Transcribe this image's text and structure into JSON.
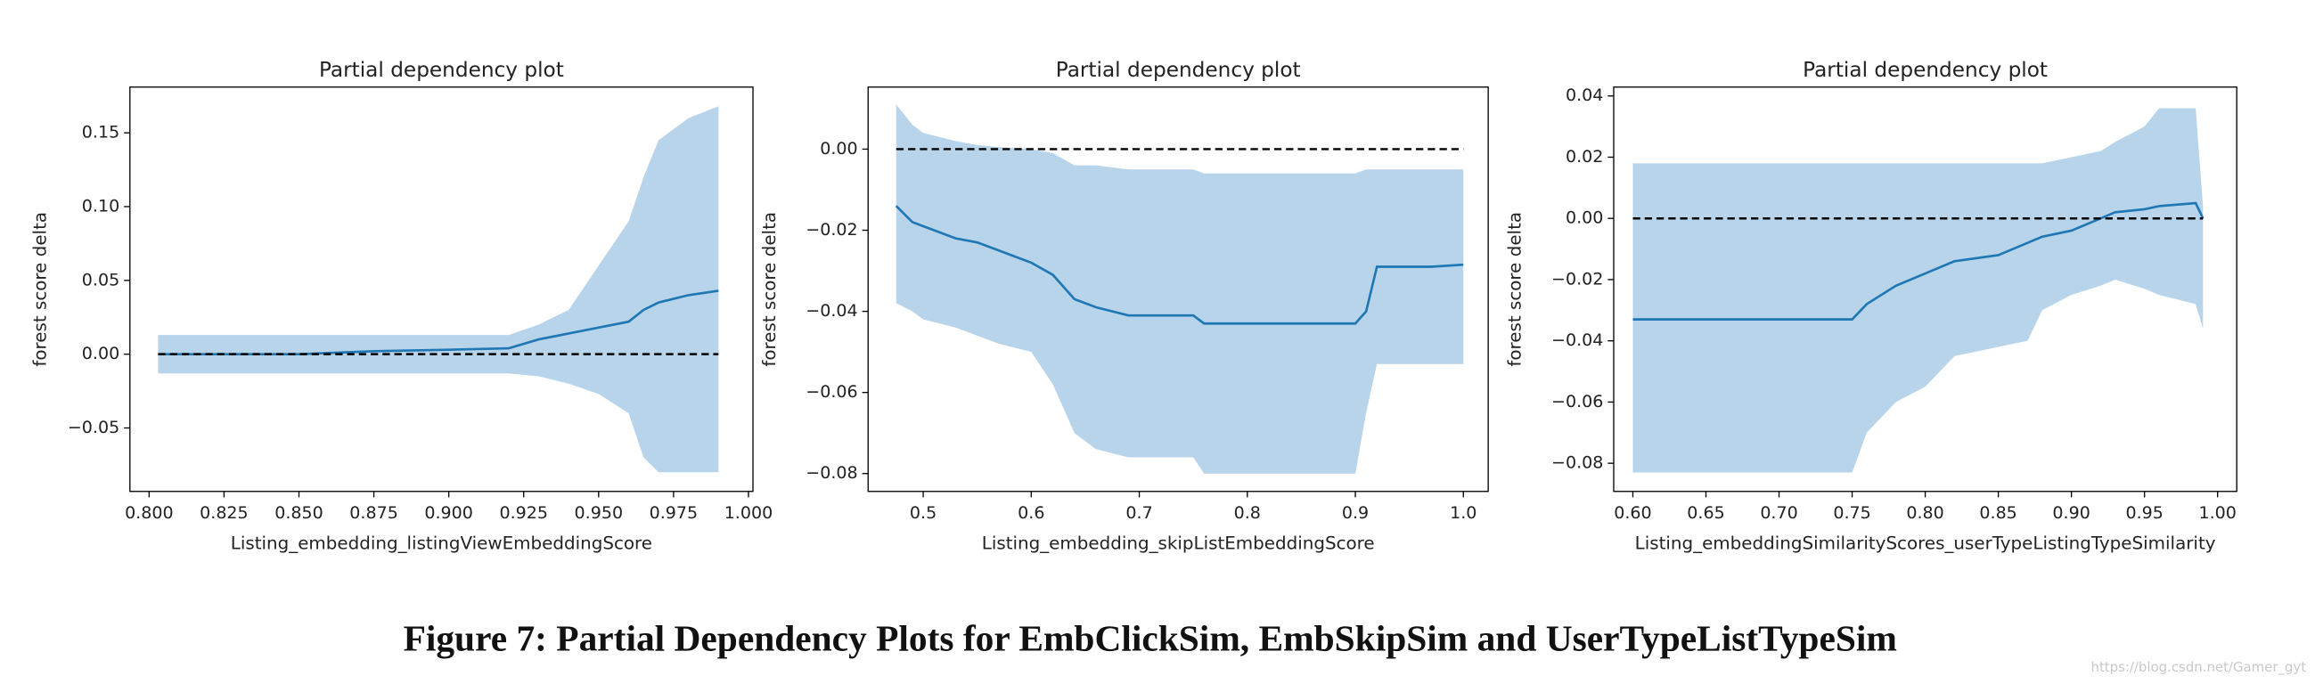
{
  "chart_data": [
    {
      "type": "line",
      "title": "Partial dependency plot",
      "xlabel": "Listing_embedding_listingViewEmbeddingScore",
      "ylabel": "forest score delta",
      "color": "#1f77b4",
      "band_color": "#b8d4ea",
      "hline": 0,
      "x": [
        0.803,
        0.85,
        0.875,
        0.9,
        0.92,
        0.93,
        0.94,
        0.95,
        0.96,
        0.965,
        0.97,
        0.98,
        0.99
      ],
      "values": [
        0.0,
        0.0,
        0.002,
        0.003,
        0.004,
        0.01,
        0.014,
        0.018,
        0.022,
        0.03,
        0.035,
        0.04,
        0.043
      ],
      "upper": [
        0.013,
        0.013,
        0.013,
        0.013,
        0.013,
        0.02,
        0.03,
        0.06,
        0.09,
        0.12,
        0.145,
        0.16,
        0.168
      ],
      "lower": [
        -0.013,
        -0.013,
        -0.013,
        -0.013,
        -0.013,
        -0.015,
        -0.02,
        -0.027,
        -0.04,
        -0.07,
        -0.08,
        -0.08,
        -0.08
      ],
      "xlim": [
        0.7936,
        1.0015
      ],
      "ylim": [
        -0.093,
        0.181
      ],
      "xticks": [
        {
          "value": 0.8,
          "label": "0.800"
        },
        {
          "value": 0.825,
          "label": "0.825"
        },
        {
          "value": 0.85,
          "label": "0.850"
        },
        {
          "value": 0.875,
          "label": "0.875"
        },
        {
          "value": 0.9,
          "label": "0.900"
        },
        {
          "value": 0.925,
          "label": "0.925"
        },
        {
          "value": 0.95,
          "label": "0.950"
        },
        {
          "value": 0.975,
          "label": "0.975"
        },
        {
          "value": 1.0,
          "label": "1.000"
        }
      ],
      "yticks": [
        {
          "value": -0.05,
          "label": "−0.05"
        },
        {
          "value": 0,
          "label": "0.00"
        },
        {
          "value": 0.05,
          "label": "0.05"
        },
        {
          "value": 0.1,
          "label": "0.10"
        },
        {
          "value": 0.15,
          "label": "0.15"
        }
      ]
    },
    {
      "type": "line",
      "title": "Partial dependency plot",
      "xlabel": "Listing_embedding_skipListEmbeddingScore",
      "ylabel": "forest score delta",
      "color": "#1f77b4",
      "band_color": "#b8d4ea",
      "hline": 0,
      "x": [
        0.475,
        0.49,
        0.5,
        0.53,
        0.55,
        0.57,
        0.6,
        0.62,
        0.64,
        0.66,
        0.69,
        0.75,
        0.76,
        0.9,
        0.91,
        0.92,
        0.97,
        1.0
      ],
      "values": [
        -0.014,
        -0.018,
        -0.019,
        -0.022,
        -0.023,
        -0.025,
        -0.028,
        -0.031,
        -0.037,
        -0.039,
        -0.041,
        -0.041,
        -0.043,
        -0.043,
        -0.04,
        -0.029,
        -0.029,
        -0.0285
      ],
      "upper": [
        0.011,
        0.006,
        0.004,
        0.002,
        0.001,
        0.0005,
        0.0,
        -0.001,
        -0.004,
        -0.004,
        -0.005,
        -0.005,
        -0.006,
        -0.006,
        -0.005,
        -0.005,
        -0.005,
        -0.005
      ],
      "lower": [
        -0.038,
        -0.04,
        -0.042,
        -0.044,
        -0.046,
        -0.048,
        -0.05,
        -0.058,
        -0.07,
        -0.074,
        -0.076,
        -0.076,
        -0.08,
        -0.08,
        -0.065,
        -0.053,
        -0.053,
        -0.053
      ],
      "xlim": [
        0.449,
        1.023
      ],
      "ylim": [
        -0.0844,
        0.0153
      ],
      "xticks": [
        0.5,
        0.6,
        0.7,
        0.8,
        0.9,
        {
          "value": 1.0,
          "label": "1.0"
        }
      ],
      "yticks": [
        {
          "value": -0.08,
          "label": "−0.08"
        },
        {
          "value": -0.06,
          "label": "−0.06"
        },
        {
          "value": -0.04,
          "label": "−0.04"
        },
        {
          "value": -0.02,
          "label": "−0.02"
        },
        {
          "value": 0,
          "label": "0.00"
        }
      ]
    },
    {
      "type": "line",
      "title": "Partial dependency plot",
      "xlabel": "Listing_embeddingSimilarityScores_userTypeListingTypeSimilarity",
      "ylabel": "forest score delta",
      "color": "#1f77b4",
      "band_color": "#b8d4ea",
      "hline": 0,
      "x": [
        0.6,
        0.75,
        0.76,
        0.78,
        0.8,
        0.82,
        0.85,
        0.87,
        0.88,
        0.9,
        0.92,
        0.93,
        0.95,
        0.96,
        0.985,
        0.99
      ],
      "values": [
        -0.033,
        -0.033,
        -0.028,
        -0.022,
        -0.018,
        -0.014,
        -0.012,
        -0.008,
        -0.006,
        -0.004,
        0.0,
        0.002,
        0.003,
        0.004,
        0.005,
        0.0
      ],
      "upper": [
        0.018,
        0.018,
        0.018,
        0.018,
        0.018,
        0.018,
        0.018,
        0.018,
        0.018,
        0.02,
        0.022,
        0.025,
        0.03,
        0.036,
        0.036,
        0.004
      ],
      "lower": [
        -0.083,
        -0.083,
        -0.07,
        -0.06,
        -0.055,
        -0.045,
        -0.042,
        -0.04,
        -0.03,
        -0.025,
        -0.022,
        -0.02,
        -0.023,
        -0.025,
        -0.028,
        -0.036
      ],
      "xlim": [
        0.5869,
        1.0131
      ],
      "ylim": [
        -0.0892,
        0.0429
      ],
      "xticks": [
        {
          "value": 0.6,
          "label": "0.60"
        },
        0.65,
        {
          "value": 0.7,
          "label": "0.70"
        },
        0.75,
        {
          "value": 0.8,
          "label": "0.80"
        },
        0.85,
        {
          "value": 0.9,
          "label": "0.90"
        },
        0.95,
        {
          "value": 1.0,
          "label": "1.00"
        }
      ],
      "yticks": [
        {
          "value": -0.08,
          "label": "−0.08"
        },
        {
          "value": -0.06,
          "label": "−0.06"
        },
        {
          "value": -0.04,
          "label": "−0.04"
        },
        {
          "value": -0.02,
          "label": "−0.02"
        },
        {
          "value": 0,
          "label": "0.00"
        },
        {
          "value": 0.02,
          "label": "0.02"
        },
        {
          "value": 0.04,
          "label": "0.04"
        }
      ]
    }
  ],
  "caption": "Figure 7: Partial Dependency Plots for EmbClickSim, EmbSkipSim and UserTypeListTypeSim",
  "watermark": "https://blog.csdn.net/Gamer_gyt"
}
